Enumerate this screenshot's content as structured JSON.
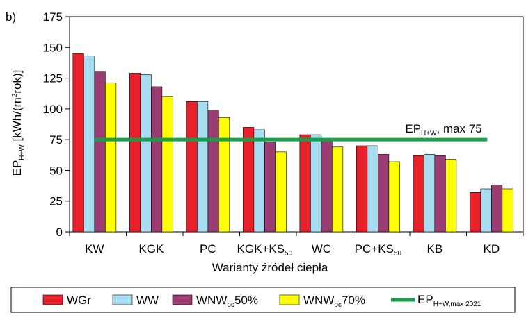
{
  "panel_label": "b)",
  "chart_data": {
    "type": "bar",
    "categories": [
      {
        "main": "KW",
        "sub": ""
      },
      {
        "main": "KGK",
        "sub": ""
      },
      {
        "main": "PC",
        "sub": ""
      },
      {
        "main": "KGK+KS",
        "sub": "50"
      },
      {
        "main": "WC",
        "sub": ""
      },
      {
        "main": "PC+KS",
        "sub": "50"
      },
      {
        "main": "KB",
        "sub": ""
      },
      {
        "main": "KD",
        "sub": ""
      }
    ],
    "series": [
      {
        "name": "WGr",
        "sub": "",
        "suffix": "",
        "color": "#e8202a",
        "values": [
          145,
          129,
          106,
          85,
          79,
          70,
          62,
          32
        ]
      },
      {
        "name": "WW",
        "sub": "",
        "suffix": "",
        "color": "#a8dcf0",
        "values": [
          143,
          128,
          106,
          83,
          79,
          70,
          63,
          35
        ]
      },
      {
        "name": "WNW",
        "sub": "oc",
        "suffix": "50%",
        "color": "#9b3d73",
        "values": [
          130,
          118,
          99,
          73,
          75,
          63,
          62,
          38
        ]
      },
      {
        "name": "WNW",
        "sub": "oc",
        "suffix": "70%",
        "color": "#ffff00",
        "values": [
          121,
          110,
          93,
          65,
          69,
          57,
          59,
          35
        ]
      }
    ],
    "reference_line": {
      "value": 75,
      "color": "#16a04a",
      "start_category": 0,
      "end_category": 7,
      "label_main": "EP",
      "label_sub": "H+W",
      "label_suffix": ", max 75",
      "legend_main": "EP",
      "legend_sub": "H+W,max 2021"
    },
    "title": "",
    "xlabel": "Warianty źródeł ciepła",
    "ylabel": {
      "main": "EP",
      "sub": "H+W",
      "unit": " [kWh/(m",
      "sup": "2",
      "unit_end": "rok)]"
    },
    "ylim": [
      0,
      175
    ],
    "yticks": [
      0,
      25,
      50,
      75,
      100,
      125,
      150,
      175
    ],
    "legend_position": "bottom"
  }
}
